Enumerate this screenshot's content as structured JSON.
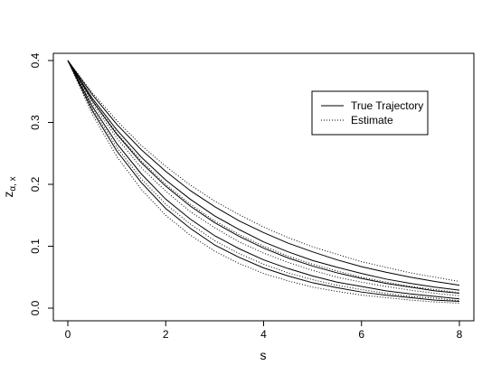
{
  "chart_data": {
    "type": "line",
    "title": "",
    "xlabel": "s",
    "ylabel_main": "z",
    "ylabel_sub": "α, x",
    "xlim": [
      0,
      8
    ],
    "ylim": [
      0,
      0.4
    ],
    "xticks": [
      0,
      2,
      4,
      6,
      8
    ],
    "yticks": [
      0.0,
      0.1,
      0.2,
      0.3,
      0.4
    ],
    "ytick_labels": [
      "0.0",
      "0.1",
      "0.2",
      "0.3",
      "0.4"
    ],
    "xtick_labels": [
      "0",
      "2",
      "4",
      "6",
      "8"
    ],
    "grid": false,
    "legend": {
      "placement": "top-right",
      "entries": [
        {
          "label": "True Trajectory",
          "style": "solid"
        },
        {
          "label": "Estimate",
          "style": "dotted"
        }
      ]
    },
    "x": [
      0,
      0.5,
      1,
      1.5,
      2,
      2.5,
      3,
      3.5,
      4,
      4.5,
      5,
      5.5,
      6,
      6.5,
      7,
      7.5,
      8
    ],
    "series": [
      {
        "style": "solid",
        "values": [
          0.4,
          0.326,
          0.266,
          0.217,
          0.176,
          0.144,
          0.117,
          0.096,
          0.078,
          0.064,
          0.052,
          0.042,
          0.035,
          0.028,
          0.023,
          0.019,
          0.015
        ]
      },
      {
        "style": "solid",
        "values": [
          0.4,
          0.319,
          0.254,
          0.203,
          0.161,
          0.129,
          0.102,
          0.082,
          0.065,
          0.052,
          0.041,
          0.033,
          0.026,
          0.021,
          0.017,
          0.013,
          0.011
        ]
      },
      {
        "style": "solid",
        "values": [
          0.4,
          0.335,
          0.281,
          0.235,
          0.197,
          0.165,
          0.138,
          0.116,
          0.097,
          0.081,
          0.068,
          0.057,
          0.048,
          0.04,
          0.034,
          0.028,
          0.024
        ]
      },
      {
        "style": "solid",
        "values": [
          0.4,
          0.345,
          0.297,
          0.256,
          0.221,
          0.19,
          0.164,
          0.141,
          0.122,
          0.105,
          0.091,
          0.078,
          0.067,
          0.058,
          0.05,
          0.043,
          0.037
        ]
      },
      {
        "style": "solid",
        "values": [
          0.4,
          0.339,
          0.288,
          0.244,
          0.207,
          0.176,
          0.149,
          0.127,
          0.107,
          0.091,
          0.077,
          0.066,
          0.056,
          0.047,
          0.04,
          0.034,
          0.029
        ]
      },
      {
        "style": "dotted",
        "values": [
          0.4,
          0.322,
          0.26,
          0.209,
          0.168,
          0.136,
          0.109,
          0.088,
          0.071,
          0.057,
          0.046,
          0.037,
          0.03,
          0.024,
          0.019,
          0.016,
          0.012
        ]
      },
      {
        "style": "dotted",
        "values": [
          0.4,
          0.313,
          0.245,
          0.192,
          0.15,
          0.118,
          0.092,
          0.072,
          0.056,
          0.044,
          0.034,
          0.027,
          0.021,
          0.017,
          0.013,
          0.01,
          0.008
        ]
      },
      {
        "style": "dotted",
        "values": [
          0.4,
          0.331,
          0.275,
          0.227,
          0.189,
          0.156,
          0.13,
          0.107,
          0.089,
          0.074,
          0.061,
          0.05,
          0.042,
          0.035,
          0.029,
          0.024,
          0.02
        ]
      },
      {
        "style": "dotted",
        "values": [
          0.4,
          0.348,
          0.303,
          0.263,
          0.229,
          0.199,
          0.173,
          0.151,
          0.131,
          0.114,
          0.099,
          0.087,
          0.075,
          0.066,
          0.057,
          0.05,
          0.043
        ]
      },
      {
        "style": "dotted",
        "values": [
          0.4,
          0.336,
          0.283,
          0.238,
          0.2,
          0.168,
          0.141,
          0.119,
          0.1,
          0.084,
          0.071,
          0.06,
          0.05,
          0.042,
          0.035,
          0.03,
          0.025
        ]
      }
    ]
  }
}
